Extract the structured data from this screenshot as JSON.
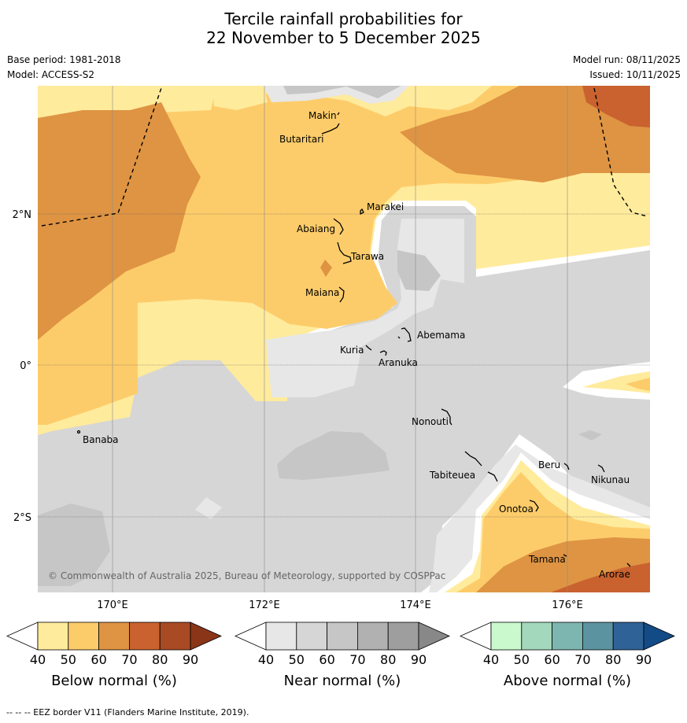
{
  "title_line1": "Tercile rainfall probabilities for",
  "title_line2": "22 November to 5 December 2025",
  "base_period": "Base period: 1981-2018",
  "model": "Model: ACCESS-S2",
  "model_run": "Model run: 08/11/2025",
  "issued": "Issued: 10/11/2025",
  "copyright": "© Commonwealth of Australia 2025, Bureau of Meteorology, supported by COSPPac",
  "footnote": "-- --  -- EEZ border V11 (Flanders Marine Institute, 2019).",
  "axes": {
    "lon_labels": [
      "170°E",
      "172°E",
      "174°E",
      "176°E"
    ],
    "lat_labels": [
      "2°N",
      "0°",
      "2°S"
    ]
  },
  "islands": [
    "Makin",
    "Butaritari",
    "Marakei",
    "Abaiang",
    "Tarawa",
    "Maiana",
    "Abemama",
    "Kuria",
    "Aranuka",
    "Banaba",
    "Nonouti",
    "Tabiteuea",
    "Beru",
    "Nikunau",
    "Onotoa",
    "Tamana",
    "Arorae"
  ],
  "colorbars": {
    "below": {
      "label": "Below normal (%)",
      "ticks": [
        "40",
        "50",
        "60",
        "70",
        "80",
        "90"
      ],
      "colors": [
        "#ffffff",
        "#ffeb9c",
        "#fdcc6a",
        "#de9443",
        "#c9622f",
        "#a84a24",
        "#8a3518"
      ]
    },
    "near": {
      "label": "Near normal (%)",
      "ticks": [
        "40",
        "50",
        "60",
        "70",
        "80",
        "90"
      ],
      "colors": [
        "#ffffff",
        "#e7e7e7",
        "#d6d6d6",
        "#c6c6c6",
        "#b1b1b1",
        "#9e9e9e",
        "#888888"
      ]
    },
    "above": {
      "label": "Above normal (%)",
      "ticks": [
        "40",
        "50",
        "60",
        "70",
        "80",
        "90"
      ],
      "colors": [
        "#ffffff",
        "#caf9cd",
        "#a4d8bc",
        "#7db5b0",
        "#5c93a1",
        "#2f6297",
        "#134b87"
      ]
    }
  },
  "colors": {
    "below_50": "#ffeb9c",
    "below_60": "#fdcc6a",
    "below_70": "#de9443",
    "below_80": "#c9622f",
    "near_40": "#e7e7e7",
    "near_50": "#d6d6d6",
    "near_60": "#c6c6c6"
  }
}
